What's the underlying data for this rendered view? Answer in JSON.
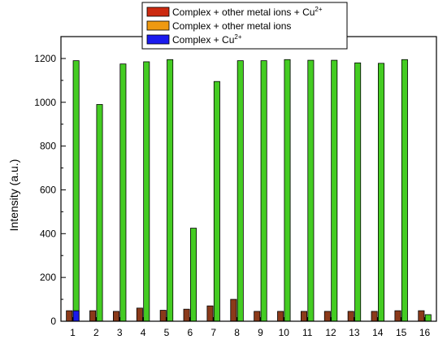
{
  "chart_data": {
    "type": "bar",
    "title": "",
    "xlabel": "",
    "ylabel": "Intensity (a.u.)",
    "categories": [
      "1",
      "2",
      "3",
      "4",
      "5",
      "6",
      "7",
      "8",
      "9",
      "10",
      "11",
      "12",
      "13",
      "14",
      "15",
      "16"
    ],
    "ylim": [
      0,
      1300
    ],
    "yticks": [
      0,
      200,
      400,
      600,
      800,
      1000,
      1200
    ],
    "grid": false,
    "legend_placement": "top-center",
    "series": [
      {
        "name": "Complex + other metal ions + Cu2+",
        "color": "#8b3a1a",
        "values": [
          48,
          48,
          45,
          60,
          50,
          55,
          70,
          100,
          45,
          45,
          45,
          45,
          45,
          45,
          48,
          48
        ]
      },
      {
        "name": "Complex + other metal ions",
        "color": "#44cc22",
        "values": [
          1190,
          990,
          1175,
          1185,
          1195,
          425,
          1095,
          1190,
          1190,
          1195,
          1192,
          1192,
          1180,
          1178,
          1195,
          30
        ]
      },
      {
        "name": "Complex +  Cu2+",
        "color": "#1a1aee",
        "values": [
          48,
          null,
          null,
          null,
          null,
          null,
          null,
          null,
          null,
          null,
          null,
          null,
          null,
          null,
          null,
          null
        ]
      }
    ],
    "legend": [
      {
        "text": "Complex + other metal ions + Cu",
        "sup": "2+",
        "color": "#cc2a10"
      },
      {
        "text": "Complex + other metal ions",
        "sup": "",
        "color": "#ee9910"
      },
      {
        "text": "Complex +  Cu",
        "sup": "2+",
        "color": "#1a1aee"
      }
    ]
  }
}
